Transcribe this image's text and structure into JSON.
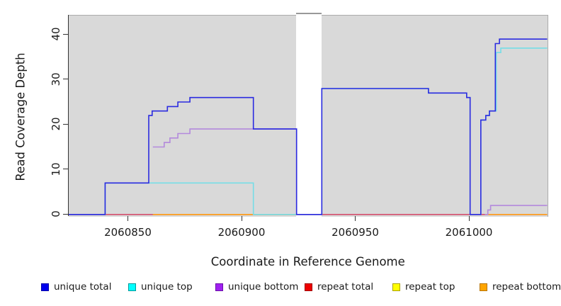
{
  "figure": {
    "background": "#ffffff",
    "plot_background": "#d9d9d9",
    "axis_color": "#333333",
    "box_border_color": "#ababab"
  },
  "chart_data": {
    "type": "line",
    "subtype": "step-coverage",
    "title": "",
    "xlabel": "Coordinate in Reference Genome",
    "ylabel": "Read Coverage Depth",
    "xlim": [
      2060824,
      2061034.4
    ],
    "ylim": [
      -0.43,
      44.38
    ],
    "grid": false,
    "legend_position": "bottom",
    "x_ticks": [
      {
        "value": 2060850,
        "label": "2060850"
      },
      {
        "value": 2060900,
        "label": "2060900"
      },
      {
        "value": 2060950,
        "label": "2060950"
      },
      {
        "value": 2061000,
        "label": "2061000"
      }
    ],
    "y_ticks": [
      {
        "value": 0,
        "label": "0"
      },
      {
        "value": 10,
        "label": "10"
      },
      {
        "value": 20,
        "label": "20"
      },
      {
        "value": 30,
        "label": "30"
      },
      {
        "value": 40,
        "label": "40"
      }
    ],
    "gap_region": {
      "x0": 2060924.0,
      "x1": 2060935.3,
      "color": "#ffffff"
    },
    "series": [
      {
        "name": "repeat top",
        "color": "#f0e040",
        "segments": [
          {
            "points": [
              [
                2060861,
                0
              ]
            ],
            "end": 2060924.2
          }
        ]
      },
      {
        "name": "repeat total",
        "color": "#d4506e",
        "segments": [
          {
            "points": [
              [
                2060824,
                0
              ]
            ],
            "end": 2061034.4
          }
        ]
      },
      {
        "name": "repeat bottom",
        "color": "#ff9f1c",
        "segments": [
          {
            "points": [
              [
                2060861,
                0
              ]
            ],
            "end": 2060924.2
          },
          {
            "points": [
              [
                2061007,
                0
              ]
            ],
            "end": 2061034.4
          }
        ]
      },
      {
        "name": "unique top",
        "color": "#76dde6",
        "segments": [
          {
            "points": [
              [
                2060824,
                0
              ],
              [
                2060840,
                7
              ],
              [
                2060905.2,
                0
              ],
              [
                2060935.3,
                28
              ],
              [
                2060982.2,
                27
              ],
              [
                2060999,
                26
              ],
              [
                2061000.5,
                0
              ],
              [
                2061005.2,
                21
              ],
              [
                2061007.4,
                22
              ],
              [
                2061009,
                23
              ],
              [
                2061012,
                36
              ],
              [
                2061014,
                37
              ]
            ],
            "end": 2061034.4
          }
        ]
      },
      {
        "name": "unique bottom",
        "color": "#b389dc",
        "segments": [
          {
            "points": [
              [
                2060861,
                15
              ],
              [
                2060866,
                16
              ],
              [
                2060868.5,
                17
              ],
              [
                2060872,
                18
              ],
              [
                2060877.3,
                19
              ],
              [
                2060924.2,
                0
              ]
            ],
            "end": 2060924.2
          },
          {
            "points": [
              [
                2061007,
                0
              ],
              [
                2061008.3,
                1
              ],
              [
                2061009.5,
                2
              ]
            ],
            "end": 2061034.4
          }
        ]
      },
      {
        "name": "unique total",
        "color": "#2b2be0",
        "segments": [
          {
            "points": [
              [
                2060824,
                0
              ],
              [
                2060840,
                7
              ],
              [
                2060859.2,
                22
              ],
              [
                2060860.7,
                23
              ],
              [
                2060867.4,
                24
              ],
              [
                2060872,
                25
              ],
              [
                2060877.3,
                26
              ],
              [
                2060905.2,
                19
              ],
              [
                2060924.2,
                0
              ],
              [
                2060935.3,
                28
              ],
              [
                2060982.2,
                27
              ],
              [
                2060999,
                26
              ],
              [
                2061000.5,
                0
              ],
              [
                2061005.2,
                21
              ],
              [
                2061007.4,
                22
              ],
              [
                2061009,
                23
              ],
              [
                2061011.6,
                38
              ],
              [
                2061013.4,
                39
              ]
            ],
            "end": 2061034.4
          }
        ]
      }
    ],
    "legend": [
      {
        "label": "unique total",
        "fill": "#0000ee",
        "border": "#0000a8"
      },
      {
        "label": "unique top",
        "fill": "#00ffff",
        "border": "#00999b"
      },
      {
        "label": "unique bottom",
        "fill": "#a020f0",
        "border": "#6a11a8"
      },
      {
        "label": "repeat total",
        "fill": "#ee0000",
        "border": "#a00000"
      },
      {
        "label": "repeat top",
        "fill": "#ffff00",
        "border": "#aaa000"
      },
      {
        "label": "repeat bottom",
        "fill": "#ffa500",
        "border": "#b87400"
      }
    ]
  }
}
